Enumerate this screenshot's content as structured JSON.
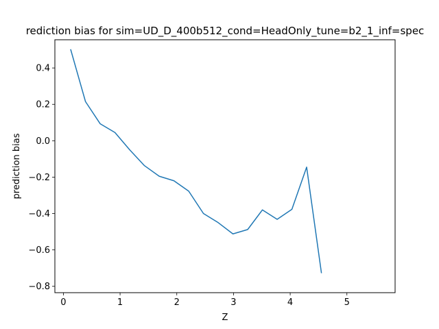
{
  "chart_data": {
    "type": "line",
    "title": "rediction bias for sim=UD_D_400b512_cond=HeadOnly_tune=b2_1_inf=spec",
    "xlabel": "Z",
    "ylabel": "prediction bias",
    "xlim": [
      -0.15,
      5.85
    ],
    "ylim": [
      -0.835,
      0.555
    ],
    "xticks": [
      0,
      1,
      2,
      3,
      4,
      5
    ],
    "yticks": [
      0.4,
      0.2,
      0.0,
      -0.2,
      -0.4,
      -0.6,
      -0.8
    ],
    "xtick_labels": [
      "0",
      "1",
      "2",
      "3",
      "4",
      "5"
    ],
    "ytick_labels": [
      "0.4",
      "0.2",
      "0.0",
      "−0.2",
      "−0.4",
      "−0.6",
      "−0.8"
    ],
    "grid": false,
    "series": [
      {
        "color": "#1f77b4",
        "x": [
          0.13,
          0.39,
          0.65,
          0.91,
          1.17,
          1.43,
          1.69,
          1.95,
          2.21,
          2.47,
          2.73,
          2.99,
          3.25,
          3.51,
          3.77,
          4.03,
          4.29,
          4.55
        ],
        "y": [
          0.5,
          0.215,
          0.093,
          0.045,
          -0.05,
          -0.137,
          -0.195,
          -0.22,
          -0.277,
          -0.4,
          -0.45,
          -0.512,
          -0.488,
          -0.38,
          -0.432,
          -0.377,
          -0.145,
          -0.725
        ]
      }
    ]
  }
}
